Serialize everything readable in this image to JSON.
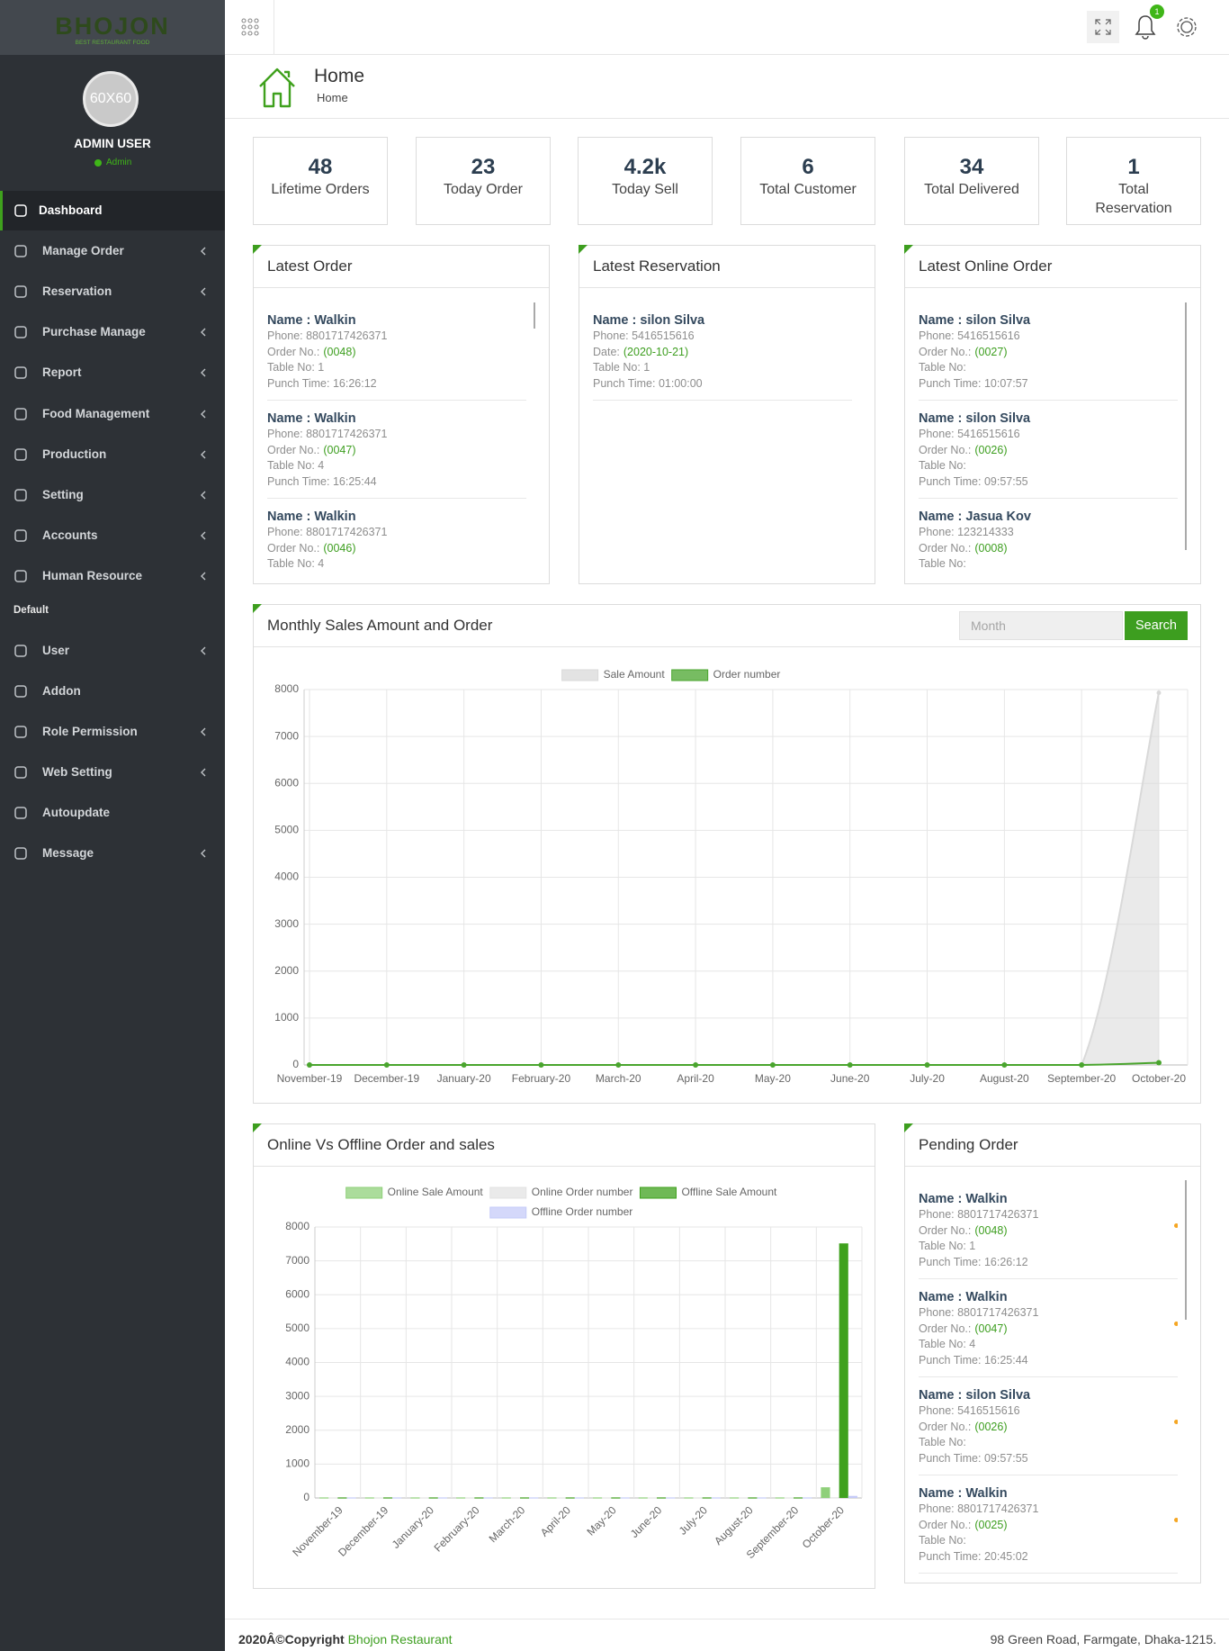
{
  "sidebar": {
    "logo": "BHOJON",
    "tagline": "BEST RESTAURANT FOOD",
    "avatar": "60X60",
    "user": "ADMIN USER",
    "role": "Admin",
    "menu": [
      {
        "label": "Dashboard",
        "active": true,
        "submenu": false
      },
      {
        "label": "Manage Order",
        "submenu": true
      },
      {
        "label": "Reservation",
        "submenu": true
      },
      {
        "label": "Purchase Manage",
        "submenu": true
      },
      {
        "label": "Report",
        "submenu": true
      },
      {
        "label": "Food Management",
        "submenu": true
      },
      {
        "label": "Production",
        "submenu": true
      },
      {
        "label": "Setting",
        "submenu": true
      },
      {
        "label": "Accounts",
        "submenu": true
      },
      {
        "label": "Human Resource",
        "submenu": true
      }
    ],
    "section": "Default",
    "menu2": [
      {
        "label": "User",
        "submenu": true
      },
      {
        "label": "Addon",
        "submenu": false
      },
      {
        "label": "Role Permission",
        "submenu": true
      },
      {
        "label": "Web Setting",
        "submenu": true
      },
      {
        "label": "Autoupdate",
        "submenu": false
      },
      {
        "label": "Message",
        "submenu": true
      }
    ]
  },
  "topbar": {
    "badge": "1"
  },
  "header": {
    "title": "Home",
    "breadcrumb": "Home"
  },
  "stats": [
    {
      "value": "48",
      "label": "Lifetime Orders"
    },
    {
      "value": "23",
      "label": "Today Order"
    },
    {
      "value": "4.2k",
      "label": "Today Sell"
    },
    {
      "value": "6",
      "label": "Total Customer"
    },
    {
      "value": "34",
      "label": "Total Delivered"
    },
    {
      "value": "1",
      "label": "Total Reservation"
    }
  ],
  "panels": [
    {
      "title": "Latest Order",
      "items": [
        {
          "name": "Name : Walkin",
          "lines": [
            {
              "text": "Phone: 8801717426371"
            },
            {
              "text": "Order No.:",
              "value": "(0048)"
            },
            {
              "text": "Table No: 1"
            },
            {
              "text": "Punch Time: 16:26:12"
            }
          ]
        },
        {
          "name": "Name : Walkin",
          "lines": [
            {
              "text": "Phone: 8801717426371"
            },
            {
              "text": "Order No.:",
              "value": "(0047)"
            },
            {
              "text": "Table No: 4"
            },
            {
              "text": "Punch Time: 16:25:44"
            }
          ]
        },
        {
          "name": "Name : Walkin",
          "lines": [
            {
              "text": "Phone: 8801717426371"
            },
            {
              "text": "Order No.:",
              "value": "(0046)"
            },
            {
              "text": "Table No: 4"
            }
          ]
        }
      ]
    },
    {
      "title": "Latest Reservation",
      "items": [
        {
          "name": "Name : silon Silva",
          "lines": [
            {
              "text": "Phone: 5416515616"
            },
            {
              "text": "Date:",
              "value": "(2020-10-21)"
            },
            {
              "text": "Table No: 1"
            },
            {
              "text": "Punch Time: 01:00:00"
            }
          ]
        }
      ]
    },
    {
      "title": "Latest Online Order",
      "items": [
        {
          "name": "Name : silon Silva",
          "lines": [
            {
              "text": "Phone: 5416515616"
            },
            {
              "text": "Order No.:",
              "value": "(0027)"
            },
            {
              "text": "Table No:"
            },
            {
              "text": "Punch Time: 10:07:57"
            }
          ]
        },
        {
          "name": "Name : silon Silva",
          "lines": [
            {
              "text": "Phone: 5416515616"
            },
            {
              "text": "Order No.:",
              "value": "(0026)"
            },
            {
              "text": "Table No:"
            },
            {
              "text": "Punch Time: 09:57:55"
            }
          ]
        },
        {
          "name": "Name : Jasua Kov",
          "lines": [
            {
              "text": "Phone: 123214333"
            },
            {
              "text": "Order No.:",
              "value": "(0008)"
            },
            {
              "text": "Table No:"
            }
          ]
        }
      ]
    }
  ],
  "monthly": {
    "search_placeholder": "Month",
    "button": "Search"
  },
  "chart_data": [
    {
      "type": "line",
      "title": "Monthly Sales Amount and Order",
      "categories": [
        "November-19",
        "December-19",
        "January-20",
        "February-20",
        "March-20",
        "April-20",
        "May-20",
        "June-20",
        "July-20",
        "August-20",
        "September-20",
        "October-20"
      ],
      "series": [
        {
          "name": "Sale Amount",
          "color": "#d9d9d9",
          "values": [
            0,
            0,
            0,
            0,
            0,
            0,
            0,
            0,
            0,
            0,
            0,
            7930
          ]
        },
        {
          "name": "Order number",
          "color": "#4aa52e",
          "values": [
            0,
            0,
            0,
            0,
            0,
            0,
            0,
            0,
            0,
            0,
            0,
            48
          ]
        }
      ],
      "ylim": [
        0,
        8000
      ],
      "yticks": [
        0,
        1000,
        2000,
        3000,
        4000,
        5000,
        6000,
        7000,
        8000
      ],
      "grid": true
    },
    {
      "type": "bar",
      "title": "Online Vs Offline Order and sales",
      "categories": [
        "November-19",
        "December-19",
        "January-20",
        "February-20",
        "March-20",
        "April-20",
        "May-20",
        "June-20",
        "July-20",
        "August-20",
        "September-20",
        "October-20"
      ],
      "series": [
        {
          "name": "Online Sale Amount",
          "color": "#8fd07a",
          "values": [
            0,
            0,
            0,
            0,
            0,
            0,
            0,
            0,
            0,
            0,
            0,
            300
          ]
        },
        {
          "name": "Online Order number",
          "color": "#e3e3e3",
          "values": [
            0,
            0,
            0,
            0,
            0,
            0,
            0,
            0,
            0,
            0,
            0,
            3
          ]
        },
        {
          "name": "Offline Sale Amount",
          "color": "#3fa11d",
          "values": [
            0,
            0,
            0,
            0,
            0,
            0,
            0,
            0,
            0,
            0,
            0,
            7500
          ]
        },
        {
          "name": "Offline Order number",
          "color": "#c5cbf8",
          "values": [
            0,
            0,
            0,
            0,
            0,
            0,
            0,
            0,
            0,
            0,
            0,
            45
          ]
        }
      ],
      "ylim": [
        0,
        8000
      ],
      "yticks": [
        0,
        1000,
        2000,
        3000,
        4000,
        5000,
        6000,
        7000,
        8000
      ],
      "grid": true
    }
  ],
  "pending": {
    "title": "Pending Order",
    "items": [
      {
        "name": "Name : Walkin",
        "lines": [
          {
            "text": "Phone: 8801717426371"
          },
          {
            "text": "Order No.:",
            "value": "(0048)"
          },
          {
            "text": "Table No: 1"
          },
          {
            "text": "Punch Time: 16:26:12"
          }
        ]
      },
      {
        "name": "Name : Walkin",
        "lines": [
          {
            "text": "Phone: 8801717426371"
          },
          {
            "text": "Order No.:",
            "value": "(0047)"
          },
          {
            "text": "Table No: 4"
          },
          {
            "text": "Punch Time: 16:25:44"
          }
        ]
      },
      {
        "name": "Name : silon Silva",
        "lines": [
          {
            "text": "Phone: 5416515616"
          },
          {
            "text": "Order No.:",
            "value": "(0026)"
          },
          {
            "text": "Table No:"
          },
          {
            "text": "Punch Time: 09:57:55"
          }
        ]
      },
      {
        "name": "Name : Walkin",
        "lines": [
          {
            "text": "Phone: 8801717426371"
          },
          {
            "text": "Order No.:",
            "value": "(0025)"
          },
          {
            "text": "Table No:"
          },
          {
            "text": "Punch Time: 20:45:02"
          }
        ]
      }
    ]
  },
  "footer": {
    "copyright": "2020Â©Copyright",
    "company": "Bhojon Restaurant",
    "address": "98 Green Road, Farmgate, Dhaka-1215."
  }
}
